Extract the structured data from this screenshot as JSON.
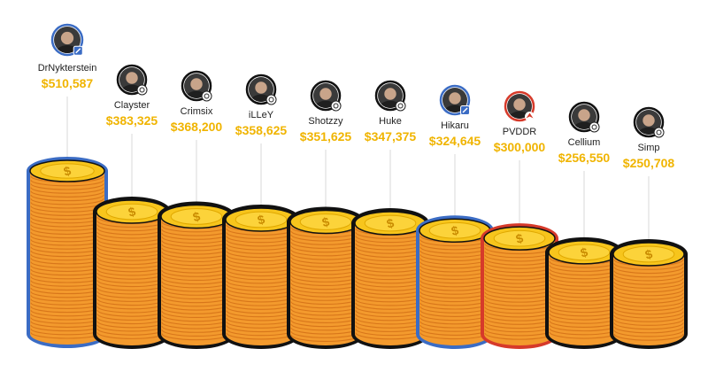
{
  "chart_data": {
    "type": "bar",
    "categories": [
      "DrNykterstein",
      "Clayster",
      "Crimsix",
      "iLLeY",
      "Shotzzy",
      "Huke",
      "Hikaru",
      "PVDDR",
      "Cellium",
      "Simp"
    ],
    "values": [
      510587,
      383325,
      368200,
      358625,
      351625,
      347375,
      324645,
      300000,
      256550,
      250708
    ],
    "value_labels": [
      "$510,587",
      "$383,325",
      "$368,200",
      "$358,625",
      "$351,625",
      "$347,375",
      "$324,645",
      "$300,000",
      "$256,550",
      "$250,708"
    ],
    "badges": [
      "pencil-icon",
      "gamepad-icon",
      "gamepad-icon",
      "gamepad-icon",
      "gamepad-icon",
      "gamepad-icon",
      "pencil-icon",
      "dragon-icon",
      "gamepad-icon",
      "gamepad-icon"
    ],
    "ring_colors": [
      "#3b6cc4",
      "#111111",
      "#111111",
      "#111111",
      "#111111",
      "#111111",
      "#3b6cc4",
      "#d63a2a",
      "#111111",
      "#111111"
    ],
    "colors": {
      "value_text": "#f0b400",
      "coin_fill": "#f39a2d",
      "coin_line": "#d8761a",
      "coin_top": "#f7c51c",
      "coin_top_inner": "#fcd33a",
      "coin_symbol": "#c98b00",
      "leader_line": "#d9d9d9",
      "name_text": "#222222"
    },
    "ylim": [
      0,
      510587
    ]
  }
}
